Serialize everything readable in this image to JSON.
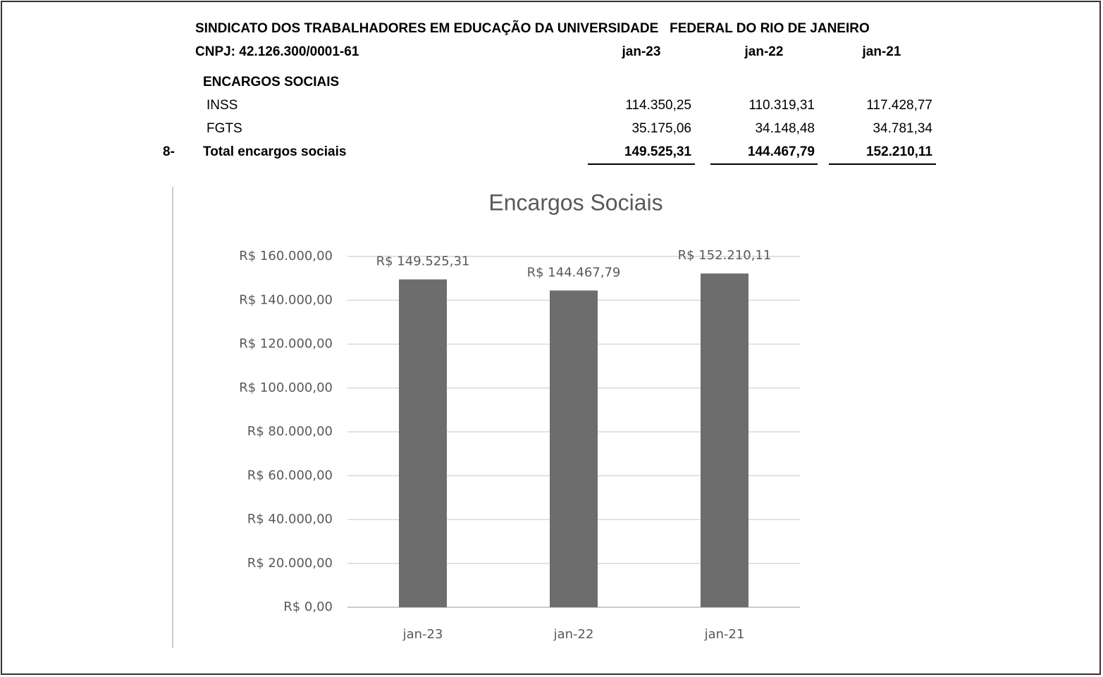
{
  "header": {
    "title": "SINDICATO DOS TRABALHADORES EM EDUCAÇÃO DA UNIVERSIDADE   FEDERAL DO RIO DE JANEIRO",
    "cnpj": "CNPJ: 42.126.300/0001-61"
  },
  "table": {
    "columns": [
      "jan-23",
      "jan-22",
      "jan-21"
    ],
    "section": "ENCARGOS SOCIAIS",
    "rows": [
      {
        "label": "INSS",
        "values": [
          "114.350,25",
          "110.319,31",
          "117.428,77"
        ]
      },
      {
        "label": "FGTS",
        "values": [
          "35.175,06",
          "34.148,48",
          "34.781,34"
        ]
      }
    ],
    "total": {
      "number": "8-",
      "label": "Total encargos sociais",
      "values": [
        "149.525,31",
        "144.467,79",
        "152.210,11"
      ]
    }
  },
  "chart_data": {
    "type": "bar",
    "title": "Encargos Sociais",
    "categories": [
      "jan-23",
      "jan-22",
      "jan-21"
    ],
    "values": [
      149525.31,
      144467.79,
      152210.11
    ],
    "value_labels": [
      "R$ 149.525,31",
      "R$ 144.467,79",
      "R$ 152.210,11"
    ],
    "color": "#6d6d6d",
    "ylim": [
      0,
      160000
    ],
    "yticks": [
      {
        "value": 0,
        "label": "R$ 0,00"
      },
      {
        "value": 20000,
        "label": "R$ 20.000,00"
      },
      {
        "value": 40000,
        "label": "R$ 40.000,00"
      },
      {
        "value": 60000,
        "label": "R$ 60.000,00"
      },
      {
        "value": 80000,
        "label": "R$ 80.000,00"
      },
      {
        "value": 100000,
        "label": "R$ 100.000,00"
      },
      {
        "value": 120000,
        "label": "R$ 120.000,00"
      },
      {
        "value": 140000,
        "label": "R$ 140.000,00"
      },
      {
        "value": 160000,
        "label": "R$ 160.000,00"
      }
    ],
    "grid": true
  }
}
